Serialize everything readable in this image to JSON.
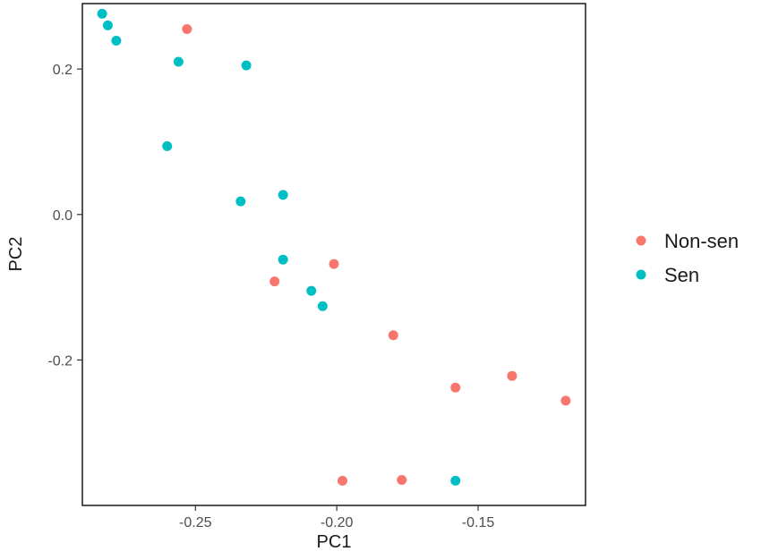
{
  "chart_data": {
    "type": "scatter",
    "title": "",
    "xlabel": "PC1",
    "ylabel": "PC2",
    "xlim": [
      -0.29,
      -0.112
    ],
    "ylim": [
      -0.4,
      0.29
    ],
    "x_ticks": [
      -0.25,
      -0.2,
      -0.15
    ],
    "x_tick_labels": [
      "-0.25",
      "-0.20",
      "-0.15"
    ],
    "y_ticks": [
      -0.2,
      0.0,
      0.2
    ],
    "y_tick_labels": [
      "-0.2",
      "0.0",
      "0.2"
    ],
    "grid": false,
    "legend_position": "right",
    "series": [
      {
        "name": "Non-sen",
        "color": "#F8766D",
        "points": [
          {
            "x": -0.253,
            "y": 0.255
          },
          {
            "x": -0.222,
            "y": -0.092
          },
          {
            "x": -0.201,
            "y": -0.068
          },
          {
            "x": -0.18,
            "y": -0.166
          },
          {
            "x": -0.158,
            "y": -0.238
          },
          {
            "x": -0.138,
            "y": -0.222
          },
          {
            "x": -0.119,
            "y": -0.256
          },
          {
            "x": -0.198,
            "y": -0.366
          },
          {
            "x": -0.177,
            "y": -0.365
          }
        ]
      },
      {
        "name": "Sen",
        "color": "#00BFC4",
        "points": [
          {
            "x": -0.283,
            "y": 0.276
          },
          {
            "x": -0.281,
            "y": 0.26
          },
          {
            "x": -0.278,
            "y": 0.239
          },
          {
            "x": -0.256,
            "y": 0.21
          },
          {
            "x": -0.232,
            "y": 0.205
          },
          {
            "x": -0.26,
            "y": 0.094
          },
          {
            "x": -0.234,
            "y": 0.018
          },
          {
            "x": -0.219,
            "y": 0.027
          },
          {
            "x": -0.219,
            "y": -0.062
          },
          {
            "x": -0.209,
            "y": -0.105
          },
          {
            "x": -0.205,
            "y": -0.126
          },
          {
            "x": -0.158,
            "y": -0.366
          }
        ]
      }
    ]
  }
}
